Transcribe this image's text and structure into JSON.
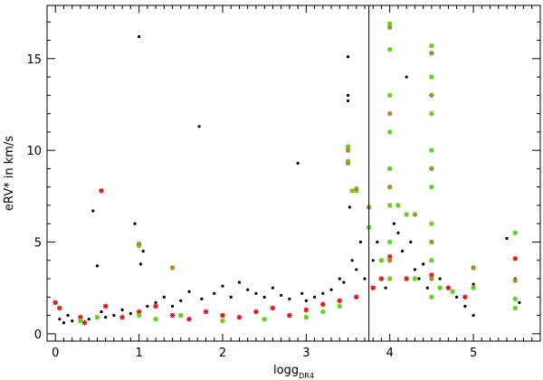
{
  "chart_data": {
    "type": "scatter",
    "xlabel_main": "logg",
    "xlabel_sub": "DR4",
    "ylabel": "eRV* in km/s",
    "xlim": [
      -0.1,
      5.8
    ],
    "ylim": [
      -0.4,
      17.9
    ],
    "x_ticks": [
      "0",
      "1",
      "2",
      "3",
      "4",
      "5"
    ],
    "y_ticks": [
      "0",
      "5",
      "10",
      "15"
    ],
    "x_tick_values": [
      0,
      1,
      2,
      3,
      4,
      5
    ],
    "y_tick_values": [
      0,
      5,
      10,
      15
    ],
    "grid": false,
    "reference_line_x": 3.75,
    "colors": {
      "black": "#000000",
      "red": "#e0181a",
      "green": "#5fd016",
      "olive": "#a78a24"
    },
    "series": [
      {
        "marker": "dot",
        "color": "black",
        "points": [
          [
            0.05,
            0.8
          ],
          [
            0.1,
            0.6
          ],
          [
            0.15,
            1.0
          ],
          [
            0.2,
            0.7
          ],
          [
            0.3,
            0.9
          ],
          [
            0.4,
            0.8
          ],
          [
            0.45,
            6.7
          ],
          [
            0.5,
            3.7
          ],
          [
            0.55,
            1.2
          ],
          [
            0.6,
            0.9
          ],
          [
            0.7,
            1.0
          ],
          [
            0.8,
            1.3
          ],
          [
            0.9,
            1.1
          ],
          [
            0.95,
            6.0
          ],
          [
            1.0,
            16.2
          ],
          [
            1.02,
            3.8
          ],
          [
            1.05,
            4.5
          ],
          [
            1.1,
            1.5
          ],
          [
            1.2,
            1.7
          ],
          [
            1.3,
            2.0
          ],
          [
            1.4,
            1.5
          ],
          [
            1.5,
            1.8
          ],
          [
            1.6,
            2.3
          ],
          [
            1.72,
            11.3
          ],
          [
            1.75,
            1.9
          ],
          [
            1.9,
            2.2
          ],
          [
            2.0,
            2.6
          ],
          [
            2.1,
            2.0
          ],
          [
            2.2,
            2.8
          ],
          [
            2.3,
            2.4
          ],
          [
            2.4,
            2.2
          ],
          [
            2.5,
            2.0
          ],
          [
            2.6,
            2.5
          ],
          [
            2.7,
            2.1
          ],
          [
            2.8,
            1.9
          ],
          [
            2.9,
            9.3
          ],
          [
            2.95,
            2.2
          ],
          [
            3.0,
            1.8
          ],
          [
            3.1,
            2.0
          ],
          [
            3.2,
            2.2
          ],
          [
            3.3,
            2.4
          ],
          [
            3.4,
            3.0
          ],
          [
            3.45,
            2.8
          ],
          [
            3.5,
            15.1
          ],
          [
            3.5,
            13.0
          ],
          [
            3.5,
            12.7
          ],
          [
            3.52,
            6.9
          ],
          [
            3.55,
            4.0
          ],
          [
            3.6,
            3.5
          ],
          [
            3.65,
            5.0
          ],
          [
            3.7,
            3.0
          ],
          [
            3.8,
            4.0
          ],
          [
            3.85,
            5.0
          ],
          [
            3.9,
            3.0
          ],
          [
            3.95,
            2.5
          ],
          [
            4.05,
            6.0
          ],
          [
            4.1,
            5.5
          ],
          [
            4.15,
            4.5
          ],
          [
            4.2,
            14.0
          ],
          [
            4.25,
            5.0
          ],
          [
            4.3,
            3.5
          ],
          [
            4.35,
            3.0
          ],
          [
            4.4,
            3.8
          ],
          [
            4.45,
            2.5
          ],
          [
            4.6,
            3.0
          ],
          [
            4.7,
            2.5
          ],
          [
            4.8,
            2.0
          ],
          [
            4.9,
            1.5
          ],
          [
            5.0,
            2.7
          ],
          [
            5.0,
            1.0
          ],
          [
            5.4,
            5.2
          ],
          [
            5.5,
            3.0
          ],
          [
            5.55,
            1.7
          ]
        ]
      },
      {
        "marker": "star",
        "color": "red",
        "points": [
          [
            0.0,
            1.7
          ],
          [
            0.05,
            1.4
          ],
          [
            0.3,
            0.9
          ],
          [
            0.35,
            0.6
          ],
          [
            0.55,
            7.8
          ],
          [
            0.6,
            1.5
          ],
          [
            0.8,
            0.9
          ],
          [
            1.0,
            1.2
          ],
          [
            1.2,
            1.5
          ],
          [
            1.4,
            1.0
          ],
          [
            1.6,
            0.8
          ],
          [
            1.8,
            1.2
          ],
          [
            2.0,
            1.0
          ],
          [
            2.2,
            0.9
          ],
          [
            2.4,
            1.2
          ],
          [
            2.6,
            1.4
          ],
          [
            2.8,
            1.0
          ],
          [
            3.0,
            1.3
          ],
          [
            3.2,
            1.6
          ],
          [
            3.4,
            1.8
          ],
          [
            3.6,
            2.0
          ],
          [
            3.8,
            2.5
          ],
          [
            3.9,
            3.0
          ],
          [
            4.0,
            4.2
          ],
          [
            4.2,
            3.0
          ],
          [
            4.5,
            3.2
          ],
          [
            4.7,
            2.5
          ],
          [
            4.9,
            2.0
          ],
          [
            5.5,
            4.1
          ]
        ]
      },
      {
        "marker": "star",
        "color": "green",
        "points": [
          [
            0.3,
            0.7
          ],
          [
            0.5,
            0.9
          ],
          [
            1.0,
            4.8
          ],
          [
            1.0,
            1.0
          ],
          [
            1.2,
            0.8
          ],
          [
            1.5,
            1.0
          ],
          [
            2.0,
            0.7
          ],
          [
            2.5,
            0.8
          ],
          [
            3.0,
            0.9
          ],
          [
            3.2,
            1.2
          ],
          [
            3.4,
            1.5
          ],
          [
            3.5,
            10.2
          ],
          [
            3.5,
            9.4
          ],
          [
            3.55,
            7.8
          ],
          [
            3.6,
            7.8
          ],
          [
            3.75,
            5.8
          ],
          [
            3.9,
            4.0
          ],
          [
            4.0,
            16.9
          ],
          [
            4.0,
            15.5
          ],
          [
            4.0,
            13.0
          ],
          [
            4.0,
            11.0
          ],
          [
            4.0,
            9.0
          ],
          [
            4.0,
            7.0
          ],
          [
            4.0,
            5.0
          ],
          [
            4.0,
            3.0
          ],
          [
            4.1,
            7.0
          ],
          [
            4.2,
            6.5
          ],
          [
            4.3,
            3.0
          ],
          [
            4.5,
            15.7
          ],
          [
            4.5,
            14.0
          ],
          [
            4.5,
            12.0
          ],
          [
            4.5,
            10.0
          ],
          [
            4.5,
            8.0
          ],
          [
            4.5,
            6.0
          ],
          [
            4.5,
            4.0
          ],
          [
            4.5,
            2.0
          ],
          [
            4.6,
            2.5
          ],
          [
            4.75,
            2.3
          ],
          [
            5.0,
            2.5
          ],
          [
            5.5,
            5.5
          ],
          [
            5.5,
            1.9
          ],
          [
            5.5,
            1.4
          ]
        ]
      },
      {
        "marker": "star",
        "color": "olive",
        "points": [
          [
            1.0,
            4.9
          ],
          [
            1.4,
            3.6
          ],
          [
            3.5,
            10.0
          ],
          [
            3.5,
            9.3
          ],
          [
            3.6,
            7.9
          ],
          [
            3.75,
            6.9
          ],
          [
            4.0,
            16.7
          ],
          [
            4.0,
            12.0
          ],
          [
            4.0,
            8.0
          ],
          [
            4.0,
            4.0
          ],
          [
            4.3,
            6.5
          ],
          [
            4.5,
            15.3
          ],
          [
            4.5,
            13.0
          ],
          [
            4.5,
            9.0
          ],
          [
            4.5,
            5.0
          ],
          [
            4.5,
            3.0
          ],
          [
            5.0,
            3.6
          ],
          [
            5.5,
            2.9
          ]
        ]
      }
    ]
  }
}
